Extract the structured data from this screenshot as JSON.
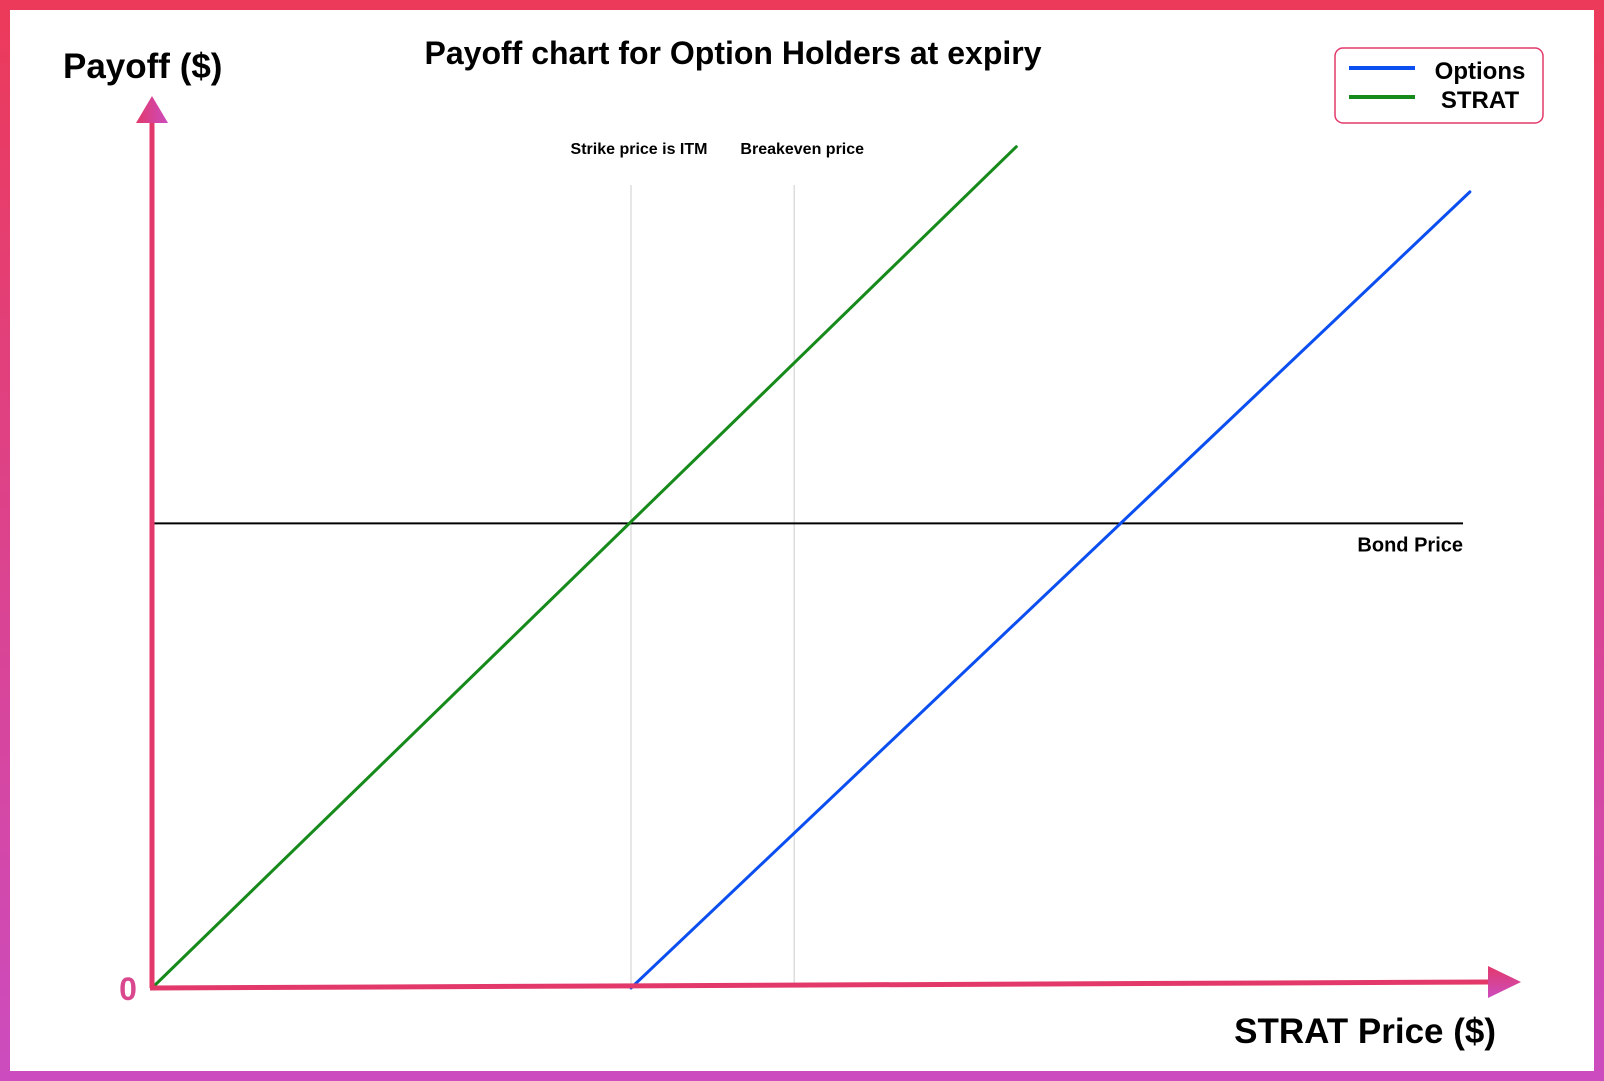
{
  "chart_data": {
    "type": "line",
    "title": "Payoff chart for Option Holders at expiry",
    "ylabel": "Payoff ($)",
    "xlabel": "STRAT Price ($)",
    "origin_label": "0",
    "xlim": [
      0,
      100
    ],
    "ylim": [
      0,
      100
    ],
    "grid": false,
    "legend_position": "top-right",
    "legend": [
      "Options",
      "STRAT"
    ],
    "series": [
      {
        "name": "Options",
        "color": "#0b4ff0",
        "x": [
          35.8,
          98.5
        ],
        "y": [
          0,
          91.5
        ]
      },
      {
        "name": "STRAT",
        "color": "#168a1a",
        "x": [
          0,
          64.6
        ],
        "y": [
          0,
          96.7
        ]
      }
    ],
    "reference_lines": {
      "horizontal": {
        "label": "Bond Price",
        "y": 53.4,
        "color": "#000000"
      },
      "vertical": [
        {
          "label": "Strike price is ITM",
          "x": 35.8,
          "color": "#dddddd"
        },
        {
          "label": "Breakeven price",
          "x": 48,
          "color": "#dddddd"
        }
      ]
    },
    "colors": {
      "frame_top": "#ec3a5a",
      "frame_bottom": "#cc4cbf",
      "axis": "#e2396a",
      "arrowhead_accent": "#cc4cbf",
      "origin_label": "#d9488f"
    }
  }
}
